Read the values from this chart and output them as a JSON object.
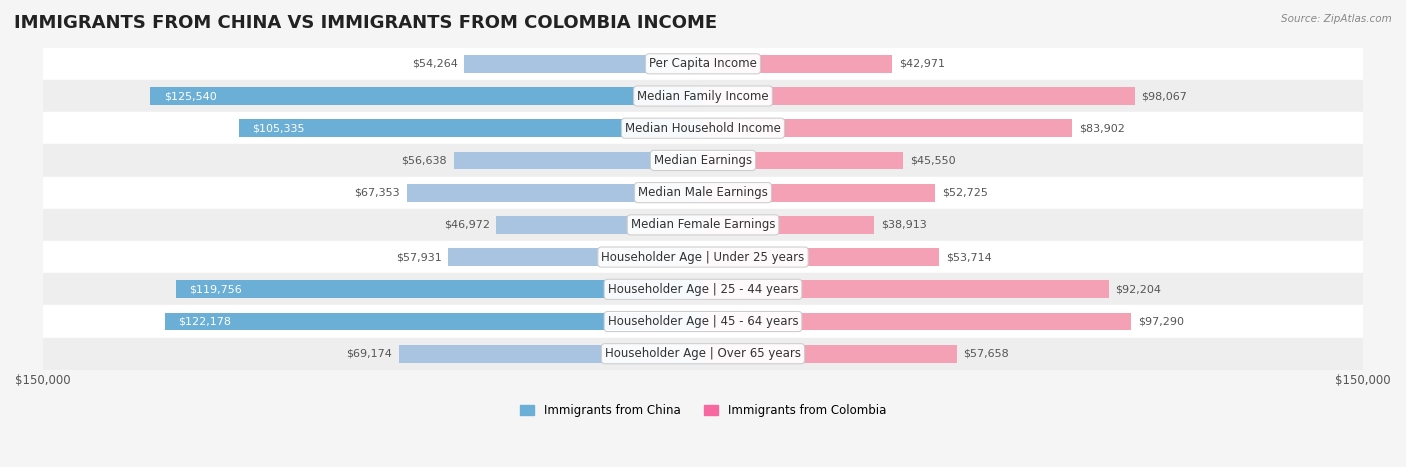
{
  "title": "IMMIGRANTS FROM CHINA VS IMMIGRANTS FROM COLOMBIA INCOME",
  "source": "Source: ZipAtlas.com",
  "categories": [
    "Per Capita Income",
    "Median Family Income",
    "Median Household Income",
    "Median Earnings",
    "Median Male Earnings",
    "Median Female Earnings",
    "Householder Age | Under 25 years",
    "Householder Age | 25 - 44 years",
    "Householder Age | 45 - 64 years",
    "Householder Age | Over 65 years"
  ],
  "china_values": [
    54264,
    125540,
    105335,
    56638,
    67353,
    46972,
    57931,
    119756,
    122178,
    69174
  ],
  "colombia_values": [
    42971,
    98067,
    83902,
    45550,
    52725,
    38913,
    53714,
    92204,
    97290,
    57658
  ],
  "china_labels": [
    "$54,264",
    "$125,540",
    "$105,335",
    "$56,638",
    "$67,353",
    "$46,972",
    "$57,931",
    "$119,756",
    "$122,178",
    "$69,174"
  ],
  "colombia_labels": [
    "$42,971",
    "$98,067",
    "$83,902",
    "$45,550",
    "$52,725",
    "$38,913",
    "$53,714",
    "$92,204",
    "$97,290",
    "$57,658"
  ],
  "max_value": 150000,
  "china_color_light": "#a8c4e0",
  "china_color_dark": "#6baed6",
  "colombia_color_light": "#f4a0b5",
  "colombia_color_dark": "#f768a1",
  "china_legend": "Immigrants from China",
  "colombia_legend": "Immigrants from Colombia",
  "bg_color": "#f5f5f5",
  "row_bg_light": "#ffffff",
  "row_bg_dark": "#eeeeee",
  "threshold_dark": 100000,
  "label_fontsize": 8.5,
  "title_fontsize": 13,
  "value_fontsize": 8,
  "axis_label_fontsize": 8.5
}
